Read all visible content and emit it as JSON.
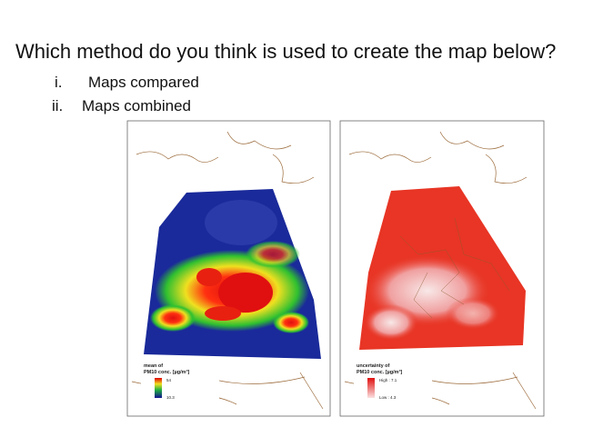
{
  "question": "Which method do you think is used to create the map below?",
  "options": [
    {
      "marker": "i.",
      "text": "Maps compared"
    },
    {
      "marker": "ii.",
      "text": "Maps combined"
    }
  ],
  "maps": [
    {
      "legend_title": [
        "mean of",
        "PM10 conc. [µg/m³]"
      ],
      "legend_high": "54",
      "legend_low": "10.3"
    },
    {
      "legend_title": [
        "uncertainty of",
        "PM10 conc. [µg/m³]"
      ],
      "legend_high": "High : 7.1",
      "legend_low": "Low : 4.3"
    }
  ]
}
